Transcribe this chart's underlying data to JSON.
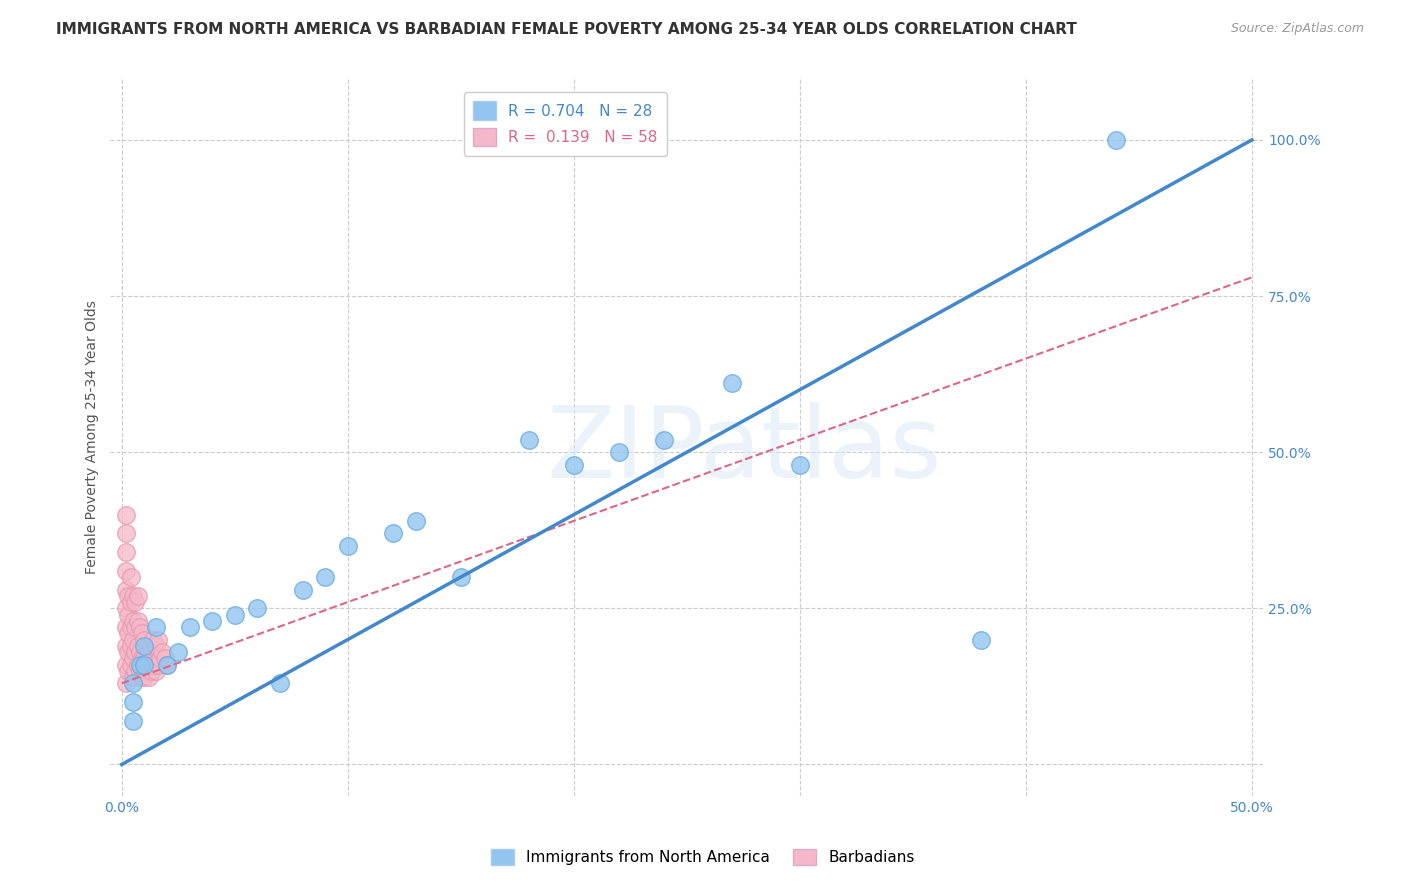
{
  "title": "IMMIGRANTS FROM NORTH AMERICA VS BARBADIAN FEMALE POVERTY AMONG 25-34 YEAR OLDS CORRELATION CHART",
  "source": "Source: ZipAtlas.com",
  "ylabel": "Female Poverty Among 25-34 Year Olds",
  "watermark": "ZIPatlas",
  "xlim": [
    -0.005,
    0.505
  ],
  "ylim": [
    -0.05,
    1.1
  ],
  "xticks": [
    0.0,
    0.1,
    0.2,
    0.3,
    0.4,
    0.5
  ],
  "xticklabels": [
    "0.0%",
    "",
    "",
    "",
    "",
    "50.0%"
  ],
  "yticks": [
    0.0,
    0.25,
    0.5,
    0.75,
    1.0
  ],
  "yticklabels": [
    "",
    "25.0%",
    "50.0%",
    "75.0%",
    "100.0%"
  ],
  "blue_R": 0.704,
  "blue_N": 28,
  "pink_R": 0.139,
  "pink_N": 58,
  "blue_color": "#92c5f0",
  "pink_color": "#f5b8c8",
  "blue_edge_color": "#6aaee0",
  "pink_edge_color": "#e898b0",
  "blue_line_color": "#4488cc",
  "pink_line_color": "#dd6688",
  "legend_blue_label": "Immigrants from North America",
  "legend_pink_label": "Barbadians",
  "blue_scatter_x": [
    0.005,
    0.005,
    0.005,
    0.008,
    0.01,
    0.01,
    0.015,
    0.02,
    0.025,
    0.03,
    0.04,
    0.05,
    0.06,
    0.07,
    0.08,
    0.09,
    0.1,
    0.12,
    0.13,
    0.15,
    0.18,
    0.2,
    0.22,
    0.24,
    0.27,
    0.3,
    0.38,
    0.44
  ],
  "blue_scatter_y": [
    0.07,
    0.1,
    0.13,
    0.16,
    0.16,
    0.19,
    0.22,
    0.16,
    0.18,
    0.22,
    0.23,
    0.24,
    0.25,
    0.13,
    0.28,
    0.3,
    0.35,
    0.37,
    0.39,
    0.3,
    0.52,
    0.48,
    0.5,
    0.52,
    0.61,
    0.48,
    0.2,
    1.0
  ],
  "pink_scatter_x": [
    0.002,
    0.002,
    0.002,
    0.002,
    0.002,
    0.002,
    0.002,
    0.002,
    0.002,
    0.002,
    0.003,
    0.003,
    0.003,
    0.003,
    0.003,
    0.004,
    0.004,
    0.004,
    0.004,
    0.004,
    0.005,
    0.005,
    0.005,
    0.005,
    0.005,
    0.006,
    0.006,
    0.006,
    0.006,
    0.007,
    0.007,
    0.007,
    0.007,
    0.008,
    0.008,
    0.008,
    0.009,
    0.009,
    0.009,
    0.01,
    0.01,
    0.01,
    0.011,
    0.011,
    0.012,
    0.012,
    0.013,
    0.013,
    0.014,
    0.014,
    0.015,
    0.015,
    0.016,
    0.016,
    0.017,
    0.018,
    0.019,
    0.02
  ],
  "pink_scatter_y": [
    0.13,
    0.16,
    0.19,
    0.22,
    0.25,
    0.28,
    0.31,
    0.34,
    0.37,
    0.4,
    0.15,
    0.18,
    0.21,
    0.24,
    0.27,
    0.16,
    0.19,
    0.22,
    0.26,
    0.3,
    0.14,
    0.17,
    0.2,
    0.23,
    0.27,
    0.15,
    0.18,
    0.22,
    0.26,
    0.16,
    0.19,
    0.23,
    0.27,
    0.15,
    0.18,
    0.22,
    0.14,
    0.17,
    0.21,
    0.14,
    0.17,
    0.2,
    0.15,
    0.19,
    0.14,
    0.18,
    0.15,
    0.19,
    0.16,
    0.2,
    0.15,
    0.19,
    0.16,
    0.2,
    0.17,
    0.18,
    0.17,
    0.16
  ],
  "blue_trend_x": [
    0.0,
    0.5
  ],
  "blue_trend_y": [
    0.0,
    1.0
  ],
  "pink_trend_x": [
    0.0,
    0.5
  ],
  "pink_trend_y": [
    0.13,
    0.78
  ],
  "title_fontsize": 11,
  "axis_label_fontsize": 10,
  "tick_fontsize": 10,
  "legend_fontsize": 11
}
